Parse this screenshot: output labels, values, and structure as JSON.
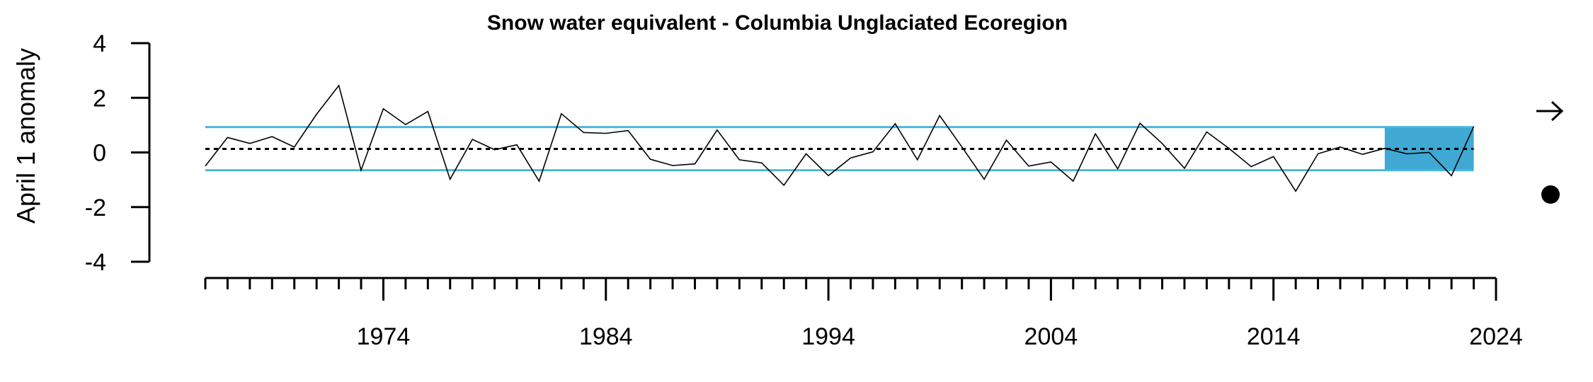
{
  "chart_data": {
    "type": "line",
    "title": "Snow water equivalent - Columbia Unglaciated Ecoregion",
    "ylabel": "April 1 anomaly",
    "xlabel": "",
    "xlim": [
      1966,
      2024
    ],
    "ylim": [
      -4,
      4
    ],
    "y_ticks": [
      4,
      2,
      0,
      -2,
      -4
    ],
    "x_tick_labels": [
      1974,
      1984,
      1994,
      2004,
      2014,
      2024
    ],
    "x_minor_ticks": {
      "start": 1966,
      "end": 2024,
      "step": 1
    },
    "grid": false,
    "series": [
      {
        "color": "#000000",
        "x": [
          1966,
          1967,
          1968,
          1969,
          1970,
          1971,
          1972,
          1973,
          1974,
          1975,
          1976,
          1977,
          1978,
          1979,
          1980,
          1981,
          1982,
          1983,
          1984,
          1985,
          1986,
          1987,
          1988,
          1989,
          1990,
          1991,
          1992,
          1993,
          1994,
          1995,
          1996,
          1997,
          1998,
          1999,
          2000,
          2001,
          2002,
          2003,
          2004,
          2005,
          2006,
          2007,
          2008,
          2009,
          2010,
          2011,
          2012,
          2013,
          2014,
          2015,
          2016,
          2017,
          2018,
          2019,
          2020,
          2021,
          2022,
          2023
        ],
        "values": [
          -0.5,
          0.55,
          0.33,
          0.58,
          0.2,
          1.4,
          2.45,
          -0.65,
          1.6,
          1.02,
          1.5,
          -0.98,
          0.48,
          0.1,
          0.28,
          -1.05,
          1.42,
          0.73,
          0.7,
          0.8,
          -0.25,
          -0.48,
          -0.42,
          0.82,
          -0.27,
          -0.38,
          -1.2,
          -0.05,
          -0.85,
          -0.2,
          0.02,
          1.05,
          -0.27,
          1.35,
          0.2,
          -0.98,
          0.45,
          -0.5,
          -0.35,
          -1.05,
          0.68,
          -0.6,
          1.07,
          0.33,
          -0.58,
          0.75,
          0.15,
          -0.52,
          -0.15,
          -1.42,
          -0.05,
          0.2,
          -0.07,
          0.15,
          -0.05,
          0.0,
          -0.85,
          0.95
        ]
      }
    ],
    "reference_lines": {
      "mean": 0.13,
      "upper": 0.93,
      "lower": -0.65,
      "mean_color": "#000000",
      "band_color": "#4BB7DC"
    },
    "highlight_window": {
      "x_start": 2019,
      "x_end": 2023,
      "color": "#3FA9D4"
    },
    "legend": {
      "placement": "right",
      "trend_symbol": "arrow-right-icon",
      "status_symbol": "filled-circle-icon"
    }
  }
}
